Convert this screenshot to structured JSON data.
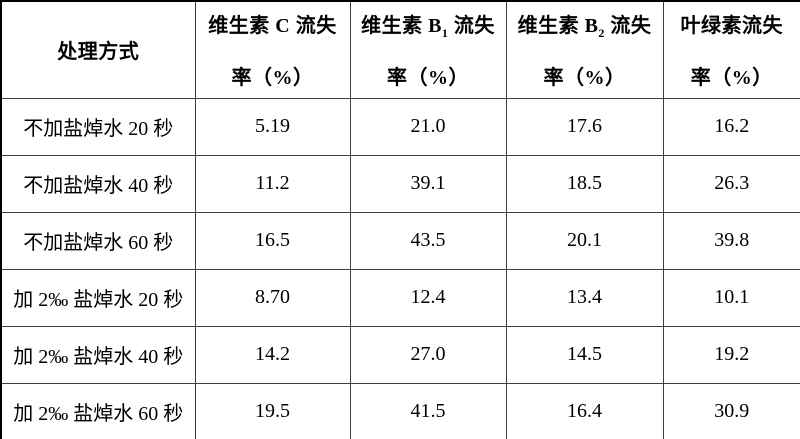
{
  "table": {
    "header": {
      "treatment": "处理方式",
      "cols": [
        {
          "pre": "维生素 C 流失",
          "sub": "",
          "post": "",
          "l2": "率（%）"
        },
        {
          "pre": "维生素 B",
          "sub": "1",
          "post": " 流失",
          "l2": "率（%）"
        },
        {
          "pre": "维生素 B",
          "sub": "2",
          "post": " 流失",
          "l2": "率（%）"
        },
        {
          "pre": "叶绿素流失",
          "sub": "",
          "post": "",
          "l2": "率（%）"
        }
      ]
    },
    "rows": [
      {
        "label": "不加盐焯水 20 秒",
        "c": "5.19",
        "b1": "21.0",
        "b2": "17.6",
        "chl": "16.2"
      },
      {
        "label": "不加盐焯水 40 秒",
        "c": "11.2",
        "b1": "39.1",
        "b2": "18.5",
        "chl": "26.3"
      },
      {
        "label": "不加盐焯水 60 秒",
        "c": "16.5",
        "b1": "43.5",
        "b2": "20.1",
        "chl": "39.8"
      },
      {
        "label": "加 2‰ 盐焯水 20 秒",
        "c": "8.70",
        "b1": "12.4",
        "b2": "13.4",
        "chl": "10.1"
      },
      {
        "label": "加 2‰ 盐焯水 40 秒",
        "c": "14.2",
        "b1": "27.0",
        "b2": "14.5",
        "chl": "19.2"
      },
      {
        "label": "加 2‰ 盐焯水 60 秒",
        "c": "19.5",
        "b1": "41.5",
        "b2": "16.4",
        "chl": "30.9"
      }
    ],
    "colors": {
      "background": "#ffffff",
      "text": "#000000",
      "border_outer": "#000000",
      "border_inner": "#3d3d3d"
    }
  },
  "chart_data": {
    "type": "table",
    "columns": [
      "处理方式",
      "维生素C流失率（%）",
      "维生素B1流失率（%）",
      "维生素B2流失率（%）",
      "叶绿素流失率（%）"
    ],
    "rows": [
      [
        "不加盐焯水 20 秒",
        5.19,
        21.0,
        17.6,
        16.2
      ],
      [
        "不加盐焯水 40 秒",
        11.2,
        39.1,
        18.5,
        26.3
      ],
      [
        "不加盐焯水 60 秒",
        16.5,
        43.5,
        20.1,
        39.8
      ],
      [
        "加 2‰ 盐焯水 20 秒",
        8.7,
        12.4,
        13.4,
        10.1
      ],
      [
        "加 2‰ 盐焯水 40 秒",
        14.2,
        27.0,
        14.5,
        19.2
      ],
      [
        "加 2‰ 盐焯水 60 秒",
        19.5,
        41.5,
        16.4,
        30.9
      ]
    ]
  }
}
